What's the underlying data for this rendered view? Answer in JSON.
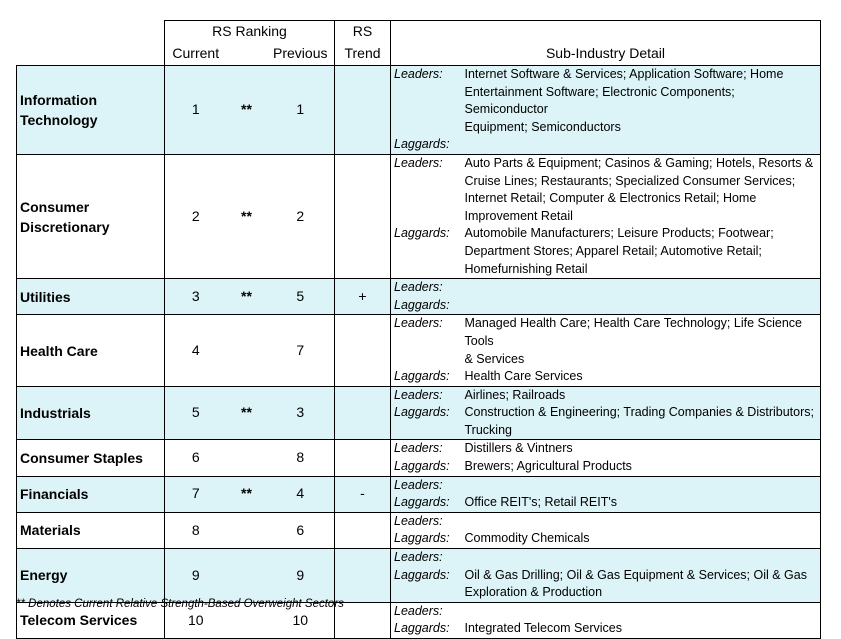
{
  "header": {
    "rs_ranking": "RS Ranking",
    "current": "Current",
    "previous": "Previous",
    "rs_trend_line1": "RS",
    "rs_trend_line2": "Trend",
    "sub_industry_detail": "Sub-Industry Detail"
  },
  "labels": {
    "leaders": "Leaders:",
    "laggards": "Laggards:"
  },
  "rows": [
    {
      "sector": [
        "Information",
        "Technology"
      ],
      "current": "1",
      "overweight": "**",
      "previous": "1",
      "trend": "",
      "leaders": [
        "Internet Software & Services; Application Software; Home",
        "Entertainment Software; Electronic Components; Semiconductor",
        "Equipment; Semiconductors"
      ],
      "laggards": []
    },
    {
      "sector": [
        "Consumer",
        "Discretionary"
      ],
      "current": "2",
      "overweight": "**",
      "previous": "2",
      "trend": "",
      "leaders": [
        "Auto Parts & Equipment; Casinos & Gaming; Hotels, Resorts &",
        "Cruise Lines; Restaurants; Specialized Consumer Services;",
        "Internet Retail; Computer & Electronics Retail; Home",
        "Improvement Retail"
      ],
      "laggards": [
        "Automobile Manufacturers; Leisure Products; Footwear;",
        "Department Stores; Apparel Retail; Automotive Retail;",
        "Homefurnishing Retail"
      ]
    },
    {
      "sector": [
        "Utilities"
      ],
      "current": "3",
      "overweight": "**",
      "previous": "5",
      "trend": "+",
      "leaders": [],
      "laggards": []
    },
    {
      "sector": [
        "Health Care"
      ],
      "current": "4",
      "overweight": "",
      "previous": "7",
      "trend": "",
      "leaders": [
        "Managed Health Care; Health Care Technology; Life Science Tools",
        "& Services"
      ],
      "laggards": [
        "Health Care Services"
      ]
    },
    {
      "sector": [
        "Industrials"
      ],
      "current": "5",
      "overweight": "**",
      "previous": "3",
      "trend": "",
      "leaders": [
        "Airlines; Railroads"
      ],
      "laggards": [
        "Construction & Engineering; Trading Companies & Distributors;",
        "Trucking"
      ]
    },
    {
      "sector": [
        "Consumer Staples"
      ],
      "current": "6",
      "overweight": "",
      "previous": "8",
      "trend": "",
      "leaders": [
        "Distillers & Vintners"
      ],
      "laggards": [
        "Brewers; Agricultural Products"
      ]
    },
    {
      "sector": [
        "Financials"
      ],
      "current": "7",
      "overweight": "**",
      "previous": "4",
      "trend": "-",
      "leaders": [],
      "laggards": [
        "Office REIT's; Retail REIT's"
      ]
    },
    {
      "sector": [
        "Materials"
      ],
      "current": "8",
      "overweight": "",
      "previous": "6",
      "trend": "",
      "leaders": [],
      "laggards": [
        "Commodity Chemicals"
      ]
    },
    {
      "sector": [
        "Energy"
      ],
      "current": "9",
      "overweight": "",
      "previous": "9",
      "trend": "",
      "leaders": [],
      "laggards": [
        "Oil & Gas Drilling; Oil & Gas Equipment & Services; Oil & Gas",
        "Exploration & Production"
      ]
    },
    {
      "sector": [
        "Telecom Services"
      ],
      "current": "10",
      "overweight": "",
      "previous": "10",
      "trend": "",
      "leaders": [],
      "laggards": [
        "Integrated Telecom Services"
      ]
    }
  ],
  "footnote": "** Denotes Current Relative Strength-Based Overweight Sectors",
  "colors": {
    "shade": "#dcf3f7",
    "border": "#000000"
  }
}
